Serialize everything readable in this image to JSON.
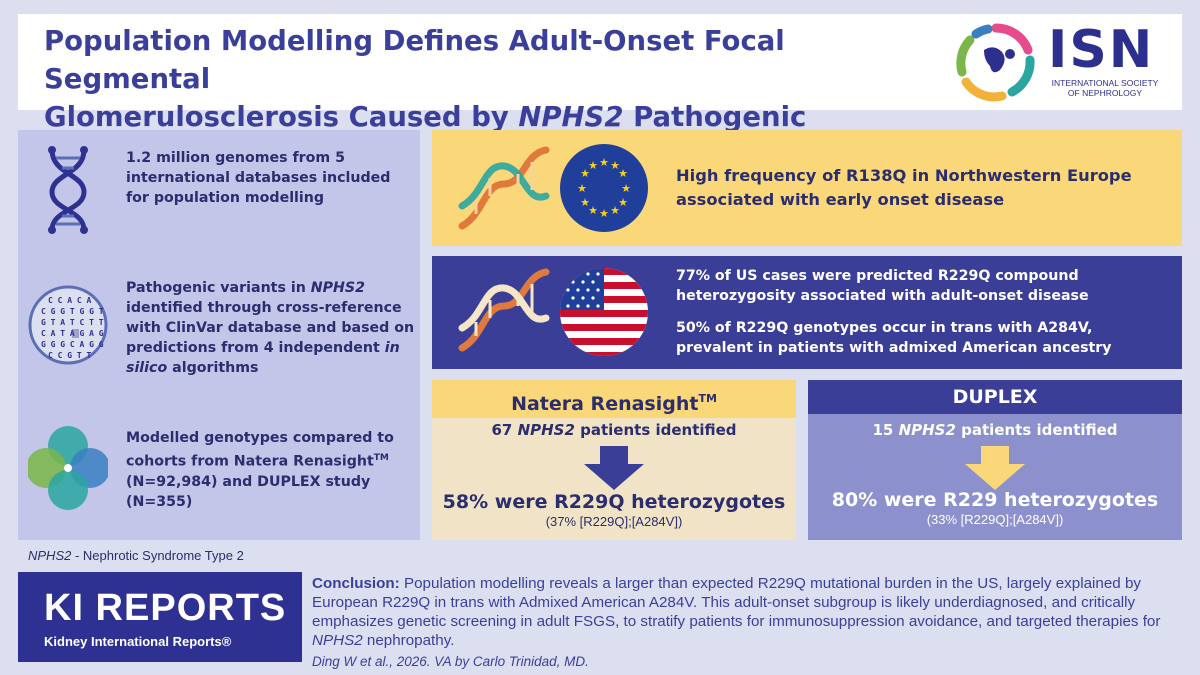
{
  "title": {
    "line1": "Population Modelling Defines Adult-Onset Focal Segmental",
    "line2_pre": "Glomerulosclerosis Caused by ",
    "line2_gene": "NPHS2",
    "line2_post": " Pathogenic Variants"
  },
  "isn_logo": {
    "abbr": "ISN",
    "line1": "INTERNATIONAL SOCIETY",
    "line2": "OF NEPHROLOGY"
  },
  "left_panel": {
    "item1": "1.2 million genomes from 5 international databases included for population modelling",
    "item2_pre": "Pathogenic variants in ",
    "item2_gene": "NPHS2",
    "item2_mid": " identified through cross-reference with ClinVar database and based on predictions from 4 independent ",
    "item2_em": "in silico",
    "item2_post": " algorithms",
    "item3_pre": "Modelled genotypes compared to cohorts from Natera Renasight",
    "item3_tm": "TM",
    "item3_post": " (N=92,984) and DUPLEX study (N=355)",
    "dna_letters": [
      "CCACA",
      "CGGTGGT",
      "GTATCTT",
      "CATAGAG",
      "GGGCAGG",
      "CCGTT"
    ]
  },
  "eu_box": {
    "text": "High frequency of R138Q in Northwestern Europe associated with early onset disease"
  },
  "us_box": {
    "text1": "77% of US cases were predicted R229Q compound heterozygosity associated with adult-onset disease",
    "text2": "50% of R229Q genotypes occur in trans with A284V, prevalent in patients with admixed American ancestry"
  },
  "natera": {
    "name": "Natera Renasight",
    "tm": "TM",
    "count_num": "67",
    "count_gene": "NPHS2",
    "count_post": " patients identified",
    "result": "58% were R229Q heterozygotes",
    "detail": "(37% [R229Q];[A284V])"
  },
  "duplex": {
    "name": "DUPLEX",
    "count_num": "15",
    "count_gene": "NPHS2",
    "count_post": " patients identified",
    "result": "80% were R229 heterozygotes",
    "detail": "(33% [R229Q];[A284V])"
  },
  "footnote": {
    "gene": "NPHS2",
    "text": " - Nephrotic Syndrome Type 2"
  },
  "ki_reports": {
    "title": "KI REPORTS",
    "subtitle": "Kidney International Reports®"
  },
  "conclusion": {
    "label": "Conclusion:",
    "text": "  Population modelling reveals a larger than expected R229Q mutational burden in the US, largely explained by European R229Q in trans with Admixed American A284V. This adult-onset subgroup is likely underdiagnosed, and critically emphasizes genetic screening in adult  FSGS, to stratify patients for immunosuppression avoidance, and targeted therapies for ",
    "gene": "NPHS2",
    "tail": " nephropathy."
  },
  "citation": "Ding W et al., 2026. VA by Carlo Trinidad, MD.",
  "colors": {
    "navy": "#2e3192",
    "title_blue": "#3a3f9b",
    "yellow": "#fad87a",
    "lavender": "#c3c6e8",
    "cream": "#f1e4c6",
    "periwinkle": "#8c90cc"
  }
}
